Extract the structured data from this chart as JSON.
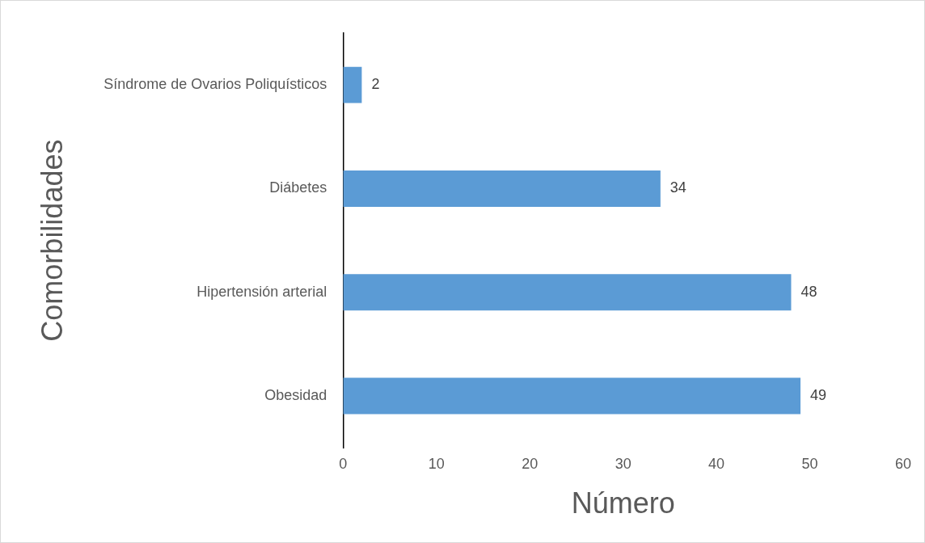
{
  "chart_data": {
    "type": "bar",
    "orientation": "horizontal",
    "xlabel": "Número",
    "ylabel": "Comorbilidades",
    "categories": [
      "Síndrome de Ovarios Poliquísticos",
      "Diábetes",
      "Hipertensión arterial",
      "Obesidad"
    ],
    "values": [
      2,
      34,
      48,
      49
    ],
    "color": "#5b9bd5",
    "xlim": [
      0,
      60
    ],
    "xticks": [
      0,
      10,
      20,
      30,
      40,
      50,
      60
    ],
    "grid": false,
    "legend": false,
    "data_labels": true
  }
}
